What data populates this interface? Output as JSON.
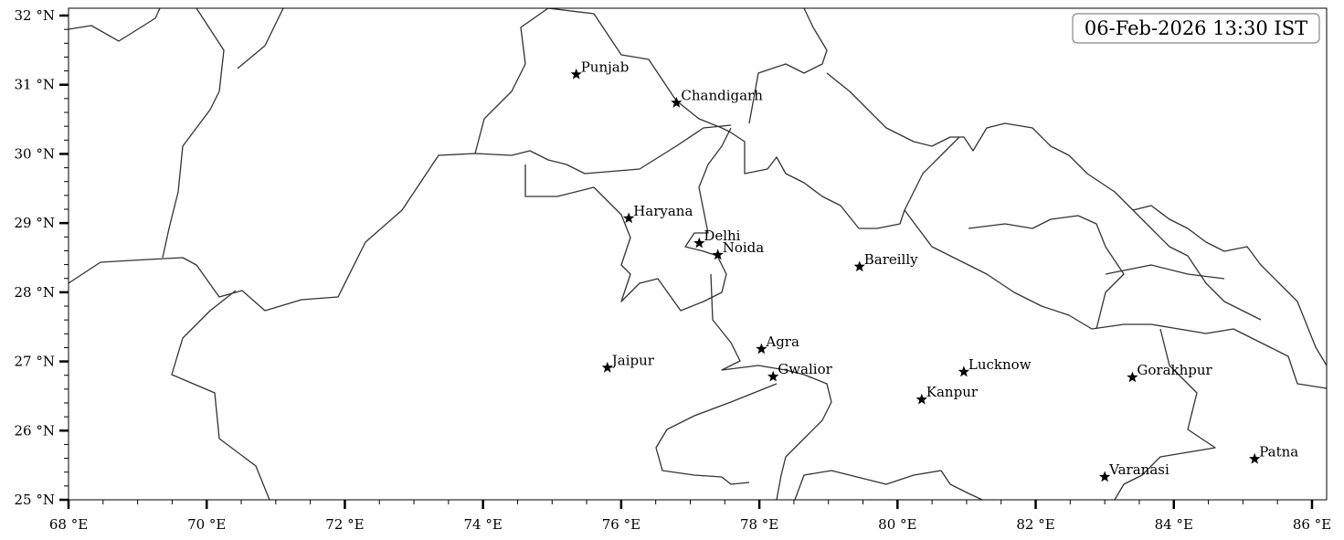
{
  "title": "06-Feb-2026 13:30 IST",
  "map": {
    "extent": {
      "lon": [
        68,
        86.2
      ],
      "lat": [
        25,
        32.1
      ]
    },
    "x_ticks": [
      {
        "value": 68,
        "label": "68 °E"
      },
      {
        "value": 70,
        "label": "70 °E"
      },
      {
        "value": 72,
        "label": "72 °E"
      },
      {
        "value": 74,
        "label": "74 °E"
      },
      {
        "value": 76,
        "label": "76 °E"
      },
      {
        "value": 78,
        "label": "78 °E"
      },
      {
        "value": 80,
        "label": "80 °E"
      },
      {
        "value": 82,
        "label": "82 °E"
      },
      {
        "value": 84,
        "label": "84 °E"
      },
      {
        "value": 86,
        "label": "86 °E"
      }
    ],
    "y_ticks": [
      {
        "value": 25,
        "label": "25 °N"
      },
      {
        "value": 26,
        "label": "26 °N"
      },
      {
        "value": 27,
        "label": "27 °N"
      },
      {
        "value": 28,
        "label": "28 °N"
      },
      {
        "value": 29,
        "label": "29 °N"
      },
      {
        "value": 30,
        "label": "30 °N"
      },
      {
        "value": 31,
        "label": "31 °N"
      },
      {
        "value": 32,
        "label": "32 °N"
      }
    ],
    "x_minor_step": 0.5,
    "y_minor_step": 0.2,
    "marker_icon": "star-icon",
    "border_color": "#333333",
    "cities": [
      {
        "name": "Punjab",
        "lon": 75.35,
        "lat": 31.15
      },
      {
        "name": "Chandigarh",
        "lon": 76.8,
        "lat": 30.74
      },
      {
        "name": "Haryana",
        "lon": 76.11,
        "lat": 29.07
      },
      {
        "name": "Delhi",
        "lon": 77.13,
        "lat": 28.71
      },
      {
        "name": "Noida",
        "lon": 77.4,
        "lat": 28.54
      },
      {
        "name": "Bareilly",
        "lon": 79.45,
        "lat": 28.37
      },
      {
        "name": "Agra",
        "lon": 78.03,
        "lat": 27.18
      },
      {
        "name": "Jaipur",
        "lon": 75.8,
        "lat": 26.91
      },
      {
        "name": "Gwalior",
        "lon": 78.2,
        "lat": 26.78
      },
      {
        "name": "Kanpur",
        "lon": 80.35,
        "lat": 26.45
      },
      {
        "name": "Lucknow",
        "lon": 80.96,
        "lat": 26.85
      },
      {
        "name": "Gorakhpur",
        "lon": 83.4,
        "lat": 26.77
      },
      {
        "name": "Varanasi",
        "lon": 83.0,
        "lat": 25.33
      },
      {
        "name": "Patna",
        "lon": 85.17,
        "lat": 25.59
      }
    ]
  }
}
